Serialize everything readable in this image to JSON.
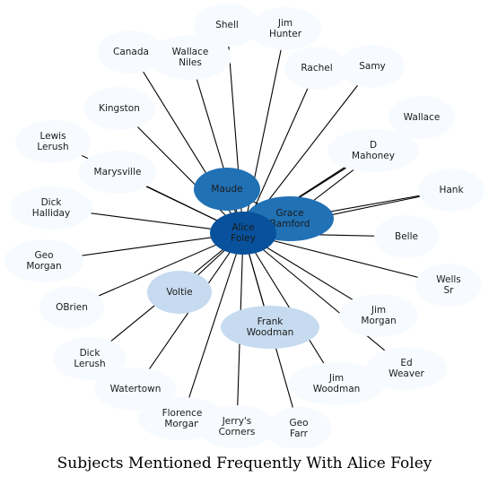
{
  "title": "Subjects Mentioned Frequently With Alice Foley",
  "colors": {
    "edge": "#000000",
    "center": "#08519c",
    "strong": "#2171b5",
    "medium": "#c6dbef",
    "faint": "#f7fbff"
  },
  "center": {
    "id": "alice",
    "label": [
      "Alice",
      "Foley"
    ],
    "tone": "center"
  },
  "nodes": [
    {
      "id": "shell",
      "label": [
        "Shell"
      ],
      "tone": "faint"
    },
    {
      "id": "jim-hunter",
      "label": [
        "Jim",
        "Hunter"
      ],
      "tone": "faint"
    },
    {
      "id": "canada",
      "label": [
        "Canada"
      ],
      "tone": "faint"
    },
    {
      "id": "wallace-niles",
      "label": [
        "Wallace",
        "Niles"
      ],
      "tone": "faint"
    },
    {
      "id": "rachel",
      "label": [
        "Rachel"
      ],
      "tone": "faint"
    },
    {
      "id": "samy",
      "label": [
        "Samy"
      ],
      "tone": "faint"
    },
    {
      "id": "kingston",
      "label": [
        "Kingston"
      ],
      "tone": "faint"
    },
    {
      "id": "wallace",
      "label": [
        "Wallace"
      ],
      "tone": "faint"
    },
    {
      "id": "lewis-lerush",
      "label": [
        "Lewis",
        "Lerush"
      ],
      "tone": "faint"
    },
    {
      "id": "d-mahoney",
      "label": [
        "D",
        "Mahoney"
      ],
      "tone": "faint"
    },
    {
      "id": "marysville",
      "label": [
        "Marysville"
      ],
      "tone": "faint"
    },
    {
      "id": "maude",
      "label": [
        "Maude"
      ],
      "tone": "strong"
    },
    {
      "id": "hank",
      "label": [
        "Hank"
      ],
      "tone": "faint"
    },
    {
      "id": "dick-halliday",
      "label": [
        "Dick",
        "Halliday"
      ],
      "tone": "faint"
    },
    {
      "id": "grace-bamford",
      "label": [
        "Grace",
        "Bamford"
      ],
      "tone": "strong"
    },
    {
      "id": "belle",
      "label": [
        "Belle"
      ],
      "tone": "faint"
    },
    {
      "id": "geo-morgan",
      "label": [
        "Geo",
        "Morgan"
      ],
      "tone": "faint"
    },
    {
      "id": "wells-sr",
      "label": [
        "Wells",
        "Sr"
      ],
      "tone": "faint"
    },
    {
      "id": "voltie",
      "label": [
        "Voltie"
      ],
      "tone": "medium"
    },
    {
      "id": "obrien",
      "label": [
        "OBrien"
      ],
      "tone": "faint"
    },
    {
      "id": "jim-morgan",
      "label": [
        "Jim",
        "Morgan"
      ],
      "tone": "faint"
    },
    {
      "id": "frank-woodman",
      "label": [
        "Frank",
        "Woodman"
      ],
      "tone": "medium"
    },
    {
      "id": "dick-lerush",
      "label": [
        "Dick",
        "Lerush"
      ],
      "tone": "faint"
    },
    {
      "id": "ed-weaver",
      "label": [
        "Ed",
        "Weaver"
      ],
      "tone": "faint"
    },
    {
      "id": "jim-woodman",
      "label": [
        "Jim",
        "Woodman"
      ],
      "tone": "faint"
    },
    {
      "id": "watertown",
      "label": [
        "Watertown"
      ],
      "tone": "faint"
    },
    {
      "id": "florence-morgan",
      "label": [
        "Florence",
        "Morgan"
      ],
      "tone": "faint"
    },
    {
      "id": "jerrys-corners",
      "label": [
        "Jerry's",
        "Corners"
      ],
      "tone": "faint"
    },
    {
      "id": "geo-farr",
      "label": [
        "Geo",
        "Farr"
      ],
      "tone": "faint"
    }
  ],
  "edges": [
    [
      "alice",
      "shell"
    ],
    [
      "alice",
      "jim-hunter"
    ],
    [
      "alice",
      "canada"
    ],
    [
      "alice",
      "wallace-niles"
    ],
    [
      "alice",
      "rachel"
    ],
    [
      "alice",
      "samy"
    ],
    [
      "alice",
      "kingston"
    ],
    [
      "alice",
      "wallace"
    ],
    [
      "alice",
      "lewis-lerush"
    ],
    [
      "alice",
      "d-mahoney"
    ],
    [
      "alice",
      "marysville"
    ],
    [
      "alice",
      "maude"
    ],
    [
      "alice",
      "hank"
    ],
    [
      "alice",
      "dick-halliday"
    ],
    [
      "alice",
      "grace-bamford"
    ],
    [
      "alice",
      "belle"
    ],
    [
      "alice",
      "geo-morgan"
    ],
    [
      "alice",
      "wells-sr"
    ],
    [
      "alice",
      "voltie"
    ],
    [
      "alice",
      "obrien"
    ],
    [
      "alice",
      "jim-morgan"
    ],
    [
      "alice",
      "frank-woodman"
    ],
    [
      "alice",
      "dick-lerush"
    ],
    [
      "alice",
      "ed-weaver"
    ],
    [
      "alice",
      "jim-woodman"
    ],
    [
      "alice",
      "watertown"
    ],
    [
      "alice",
      "florence-morgan"
    ],
    [
      "alice",
      "jerrys-corners"
    ],
    [
      "alice",
      "geo-farr"
    ],
    [
      "maude",
      "grace-bamford"
    ],
    [
      "grace-bamford",
      "wallace"
    ],
    [
      "grace-bamford",
      "hank"
    ]
  ]
}
